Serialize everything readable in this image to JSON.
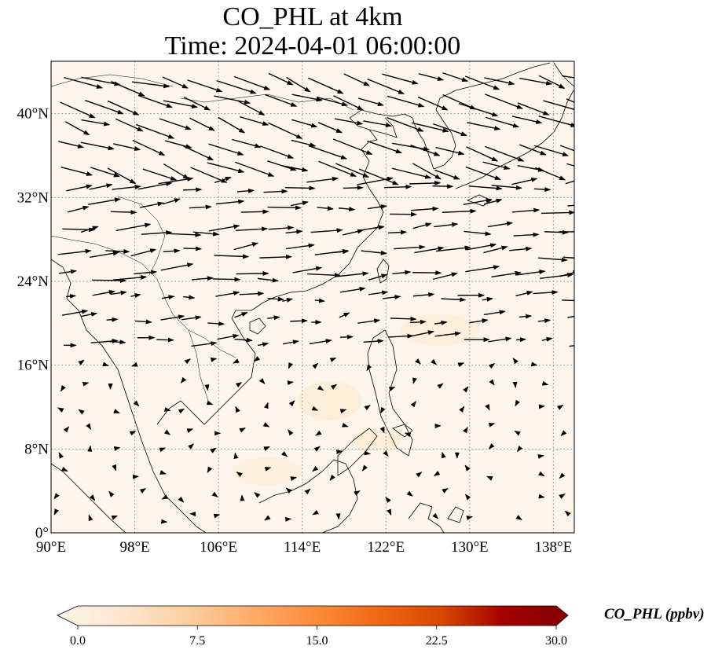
{
  "title": "CO_PHL at 4km",
  "subtitle": "Time: 2024-04-01 06:00:00",
  "map": {
    "lon_range": [
      90,
      140
    ],
    "lat_range": [
      0,
      45
    ],
    "background_color": "#fdf5e9",
    "coastline_color": "#000000",
    "gridline_color": "#888888",
    "gridline_style": "dotted",
    "lon_ticks": [
      {
        "value": 90,
        "label": "90°E"
      },
      {
        "value": 98,
        "label": "98°E"
      },
      {
        "value": 106,
        "label": "106°E"
      },
      {
        "value": 114,
        "label": "114°E"
      },
      {
        "value": 122,
        "label": "122°E"
      },
      {
        "value": 130,
        "label": "130°E"
      },
      {
        "value": 138,
        "label": "138°E"
      }
    ],
    "lat_ticks": [
      {
        "value": 0,
        "label": "0°"
      },
      {
        "value": 8,
        "label": "8°N"
      },
      {
        "value": 16,
        "label": "16°N"
      },
      {
        "value": 24,
        "label": "24°N"
      },
      {
        "value": 32,
        "label": "32°N"
      },
      {
        "value": 40,
        "label": "40°N"
      }
    ]
  },
  "colorbar": {
    "label": "CO_PHL (ppbv)",
    "min": 0,
    "max": 30,
    "extend": "both",
    "ticks": [
      "0.0",
      "7.5",
      "15.0",
      "22.5",
      "30.0"
    ],
    "colors": [
      "#fff5eb",
      "#fee6ce",
      "#fdd0a2",
      "#fdae6b",
      "#fd8d3c",
      "#f16913",
      "#d94801",
      "#a50000",
      "#7f0000"
    ]
  }
}
